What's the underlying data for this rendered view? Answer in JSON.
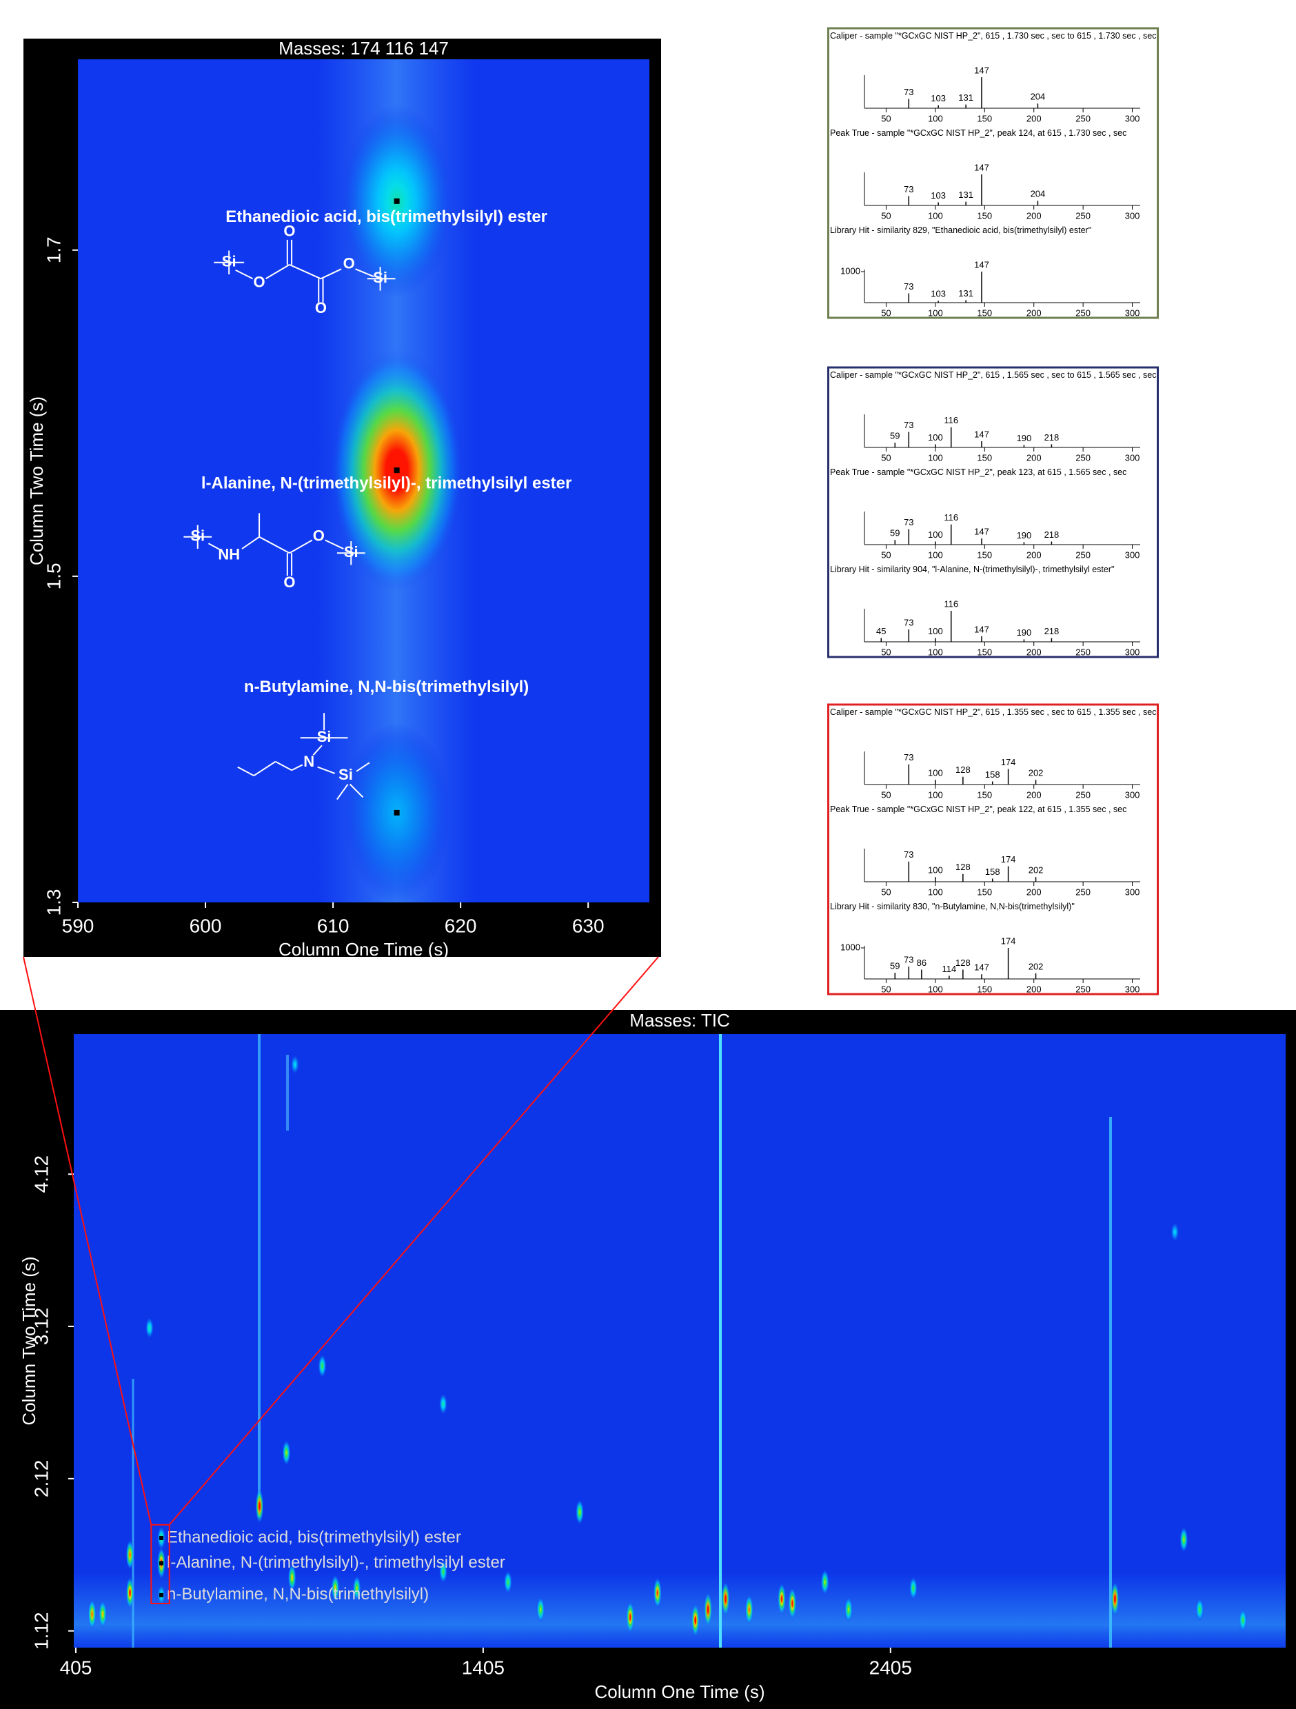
{
  "chart_data": [
    {
      "type": "heatmap",
      "title": "Masses:  174 116 147",
      "x_label": "Column One Time (s)",
      "y_label": "Column Two Time (s)",
      "xlim": [
        590,
        634.8
      ],
      "ylim": [
        1.3,
        1.817
      ],
      "xticks": [
        590,
        600,
        610,
        620,
        630
      ],
      "yticks": [
        1.3,
        1.5,
        1.7
      ],
      "x": [
        615,
        615,
        615
      ],
      "y": [
        1.73,
        1.565,
        1.355
      ],
      "values": [
        0.35,
        1.0,
        0.2
      ],
      "labels": [
        "Ethanedioic acid, bis(trimethylsilyl) ester",
        "l-Alanine, N-(trimethylsilyl)-, trimethylsilyl ester",
        "n-Butylamine, N,N-bis(trimethylsilyl)"
      ],
      "structures": [
        [
          "Si",
          "O",
          "O",
          "O",
          "O",
          "Si"
        ],
        [
          "Si",
          "NH",
          "O",
          "O",
          "Si"
        ],
        [
          "Si",
          "N",
          "Si"
        ]
      ],
      "marker_color": "#000000"
    },
    {
      "type": "heatmap",
      "title": "Masses:  TIC",
      "x_label": "Column One Time (s)",
      "y_label": "Column Two Time (s)",
      "xlim": [
        400,
        3375
      ],
      "ylim": [
        1.01,
        5.04
      ],
      "xticks": [
        405,
        1405,
        2405
      ],
      "yticks": [
        1.12,
        2.12,
        3.12,
        4.12
      ],
      "x": [
        615,
        615,
        615,
        856,
        538,
        538,
        471,
        922,
        1010,
        1766,
        1833,
        1926,
        1957,
        2000,
        2058,
        2138,
        2164,
        2244,
        2956,
        3125,
        1642,
        1466,
        1307,
        1095,
        936,
        1042,
        1546,
        2302,
        2461,
        3164,
        3270,
        586,
        943,
        3103,
        1307,
        445
      ],
      "y": [
        1.73,
        1.565,
        1.355,
        1.94,
        1.62,
        1.37,
        1.23,
        2.29,
        2.86,
        1.21,
        1.37,
        1.19,
        1.26,
        1.33,
        1.26,
        1.33,
        1.3,
        1.44,
        1.33,
        1.72,
        1.9,
        1.44,
        1.51,
        1.4,
        1.47,
        1.4,
        1.26,
        1.26,
        1.4,
        1.26,
        1.19,
        3.11,
        4.84,
        3.74,
        2.61,
        1.23
      ],
      "values": [
        0.5,
        0.9,
        0.4,
        1.0,
        0.8,
        0.9,
        0.7,
        0.6,
        0.5,
        0.9,
        0.85,
        0.95,
        1.0,
        1.0,
        0.8,
        0.9,
        0.9,
        0.6,
        1.0,
        0.6,
        0.6,
        0.5,
        0.5,
        0.6,
        0.7,
        0.7,
        0.6,
        0.6,
        0.5,
        0.5,
        0.5,
        0.4,
        0.3,
        0.3,
        0.4,
        0.8
      ],
      "labels": [
        "Ethanedioic acid, bis(trimethylsilyl) ester",
        "l-Alanine,  N-(trimethylsilyl)-,  trimethylsilyl  ester",
        "n-Butylamine,  N,N-bis(trimethylsilyl)",
        null,
        null,
        null,
        null,
        null,
        null,
        null,
        null,
        null,
        null,
        null,
        null,
        null,
        null,
        null,
        null,
        null,
        null,
        null,
        null,
        null,
        null,
        null,
        null,
        null,
        null,
        null,
        null,
        null,
        null,
        null,
        null,
        null
      ],
      "marker_color": "#000000"
    },
    {
      "type": "spectrum",
      "title": "Caliper - sample \"*GCxGC NIST HP_2\", 615 , 1.730 sec , sec to 615 , 1.730 sec , sec",
      "x": [
        73,
        103,
        131,
        147,
        204
      ],
      "values": [
        300,
        100,
        120,
        1000,
        150
      ],
      "xlim": [
        28,
        308
      ],
      "ylim": [
        0,
        1000
      ],
      "xticks": [
        50,
        100,
        150,
        200,
        250,
        300
      ],
      "frame_color": "#6e8050"
    },
    {
      "type": "spectrum",
      "title": "Peak True - sample \"*GCxGC NIST HP_2\", peak 124, at 615 , 1.730 sec , sec",
      "x": [
        73,
        103,
        131,
        147,
        204
      ],
      "values": [
        300,
        100,
        120,
        1000,
        150
      ],
      "xlim": [
        28,
        308
      ],
      "ylim": [
        0,
        1000
      ],
      "xticks": [
        50,
        100,
        150,
        200,
        250,
        300
      ],
      "frame_color": "#6e8050"
    },
    {
      "type": "spectrum",
      "title": "Library Hit - similarity 829, \"Ethanedioic acid, bis(trimethylsilyl) ester\"",
      "x": [
        73,
        103,
        131,
        147
      ],
      "values": [
        300,
        60,
        80,
        1000
      ],
      "xlim": [
        28,
        308
      ],
      "ylim": [
        0,
        1000
      ],
      "xticks": [
        50,
        100,
        150,
        200,
        250,
        300
      ],
      "yticks": [
        1000
      ],
      "frame_color": "#6e8050"
    },
    {
      "type": "spectrum",
      "title": "Caliper - sample \"*GCxGC NIST HP_2\", 615 , 1.565 sec , sec to 615 , 1.565 sec , sec",
      "x": [
        59,
        73,
        100,
        116,
        147,
        190,
        218
      ],
      "values": [
        150,
        500,
        100,
        650,
        200,
        80,
        100
      ],
      "xlim": [
        28,
        308
      ],
      "ylim": [
        0,
        1000
      ],
      "xticks": [
        50,
        100,
        150,
        200,
        250,
        300
      ],
      "frame_color": "#27306e"
    },
    {
      "type": "spectrum",
      "title": "Peak True - sample \"*GCxGC NIST HP_2\", peak 123, at 615 , 1.565 sec , sec",
      "x": [
        59,
        73,
        100,
        116,
        147,
        190,
        218
      ],
      "values": [
        150,
        500,
        100,
        650,
        200,
        80,
        100
      ],
      "xlim": [
        28,
        308
      ],
      "ylim": [
        0,
        1000
      ],
      "xticks": [
        50,
        100,
        150,
        200,
        250,
        300
      ],
      "frame_color": "#27306e"
    },
    {
      "type": "spectrum",
      "title": "Library Hit - similarity 904, \"l-Alanine, N-(trimethylsilyl)-, trimethylsilyl ester\"",
      "x": [
        45,
        73,
        100,
        116,
        147,
        190,
        218
      ],
      "values": [
        120,
        400,
        120,
        1000,
        180,
        80,
        120
      ],
      "xlim": [
        28,
        308
      ],
      "ylim": [
        0,
        1000
      ],
      "xticks": [
        50,
        100,
        150,
        200,
        250,
        300
      ],
      "frame_color": "#27306e"
    },
    {
      "type": "spectrum",
      "title": "Caliper - sample \"*GCxGC NIST HP_2\", 615 , 1.355 sec , sec to 615 , 1.355 sec , sec",
      "x": [
        73,
        100,
        128,
        158,
        174,
        202
      ],
      "values": [
        650,
        150,
        250,
        100,
        500,
        150
      ],
      "xlim": [
        28,
        308
      ],
      "ylim": [
        0,
        1000
      ],
      "xticks": [
        50,
        100,
        150,
        200,
        250,
        300
      ],
      "frame_color": "#e02020"
    },
    {
      "type": "spectrum",
      "title": "Peak True - sample \"*GCxGC NIST HP_2\", peak 122, at 615 , 1.355 sec , sec",
      "x": [
        73,
        100,
        128,
        158,
        174,
        202
      ],
      "values": [
        650,
        150,
        250,
        100,
        500,
        150
      ],
      "xlim": [
        28,
        308
      ],
      "ylim": [
        0,
        1000
      ],
      "xticks": [
        50,
        100,
        150,
        200,
        250,
        300
      ],
      "frame_color": "#e02020"
    },
    {
      "type": "spectrum",
      "title": "Library Hit - similarity 830, \"n-Butylamine, N,N-bis(trimethylsilyl)\"",
      "x": [
        59,
        73,
        86,
        114,
        128,
        147,
        174,
        202
      ],
      "values": [
        200,
        400,
        300,
        100,
        300,
        150,
        1000,
        180
      ],
      "xlim": [
        28,
        308
      ],
      "ylim": [
        0,
        1000
      ],
      "xticks": [
        50,
        100,
        150,
        200,
        250,
        300
      ],
      "yticks": [
        1000
      ],
      "frame_color": "#e02020"
    }
  ]
}
